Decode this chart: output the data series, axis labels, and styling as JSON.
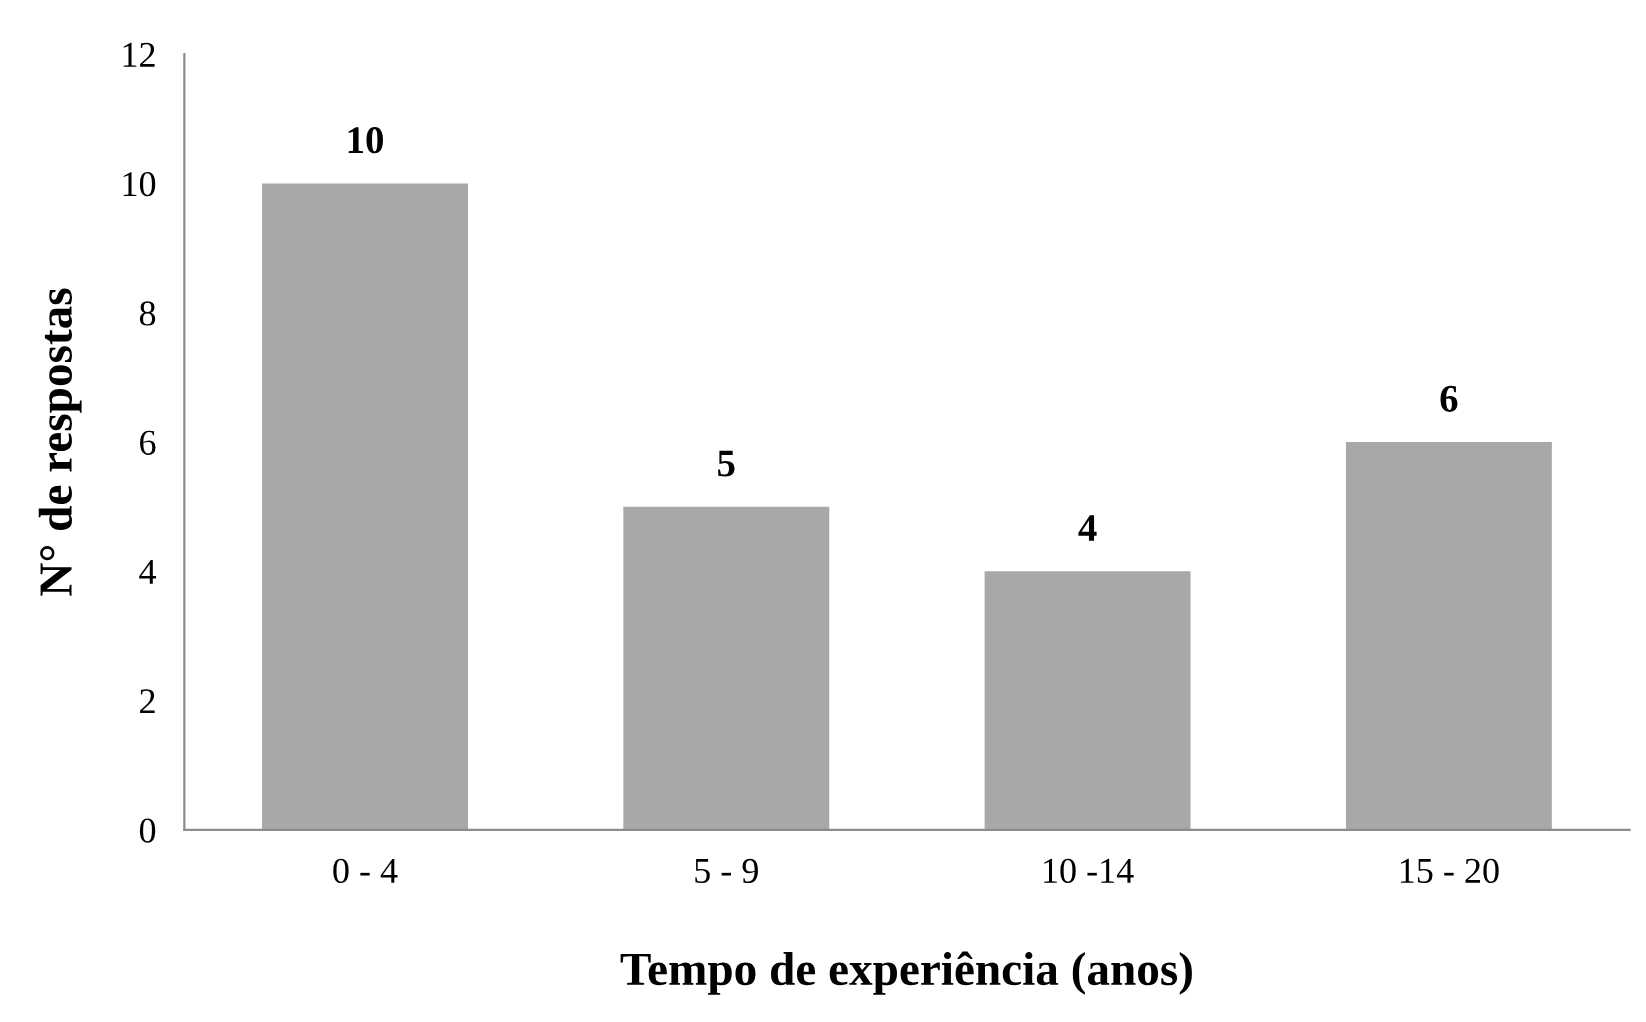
{
  "chart_data": {
    "type": "bar",
    "xlabel": "Tempo de experiência (anos)",
    "ylabel": "N° de respostas",
    "categories": [
      "0 - 4",
      "5 - 9",
      "10 -14",
      "15 - 20"
    ],
    "values": [
      10,
      5,
      4,
      6
    ],
    "color": "#a8a8a8",
    "ylim": [
      0,
      12
    ],
    "yticks": [
      0,
      2,
      4,
      6,
      8,
      10,
      12
    ],
    "grid": false,
    "data_labels": true
  }
}
